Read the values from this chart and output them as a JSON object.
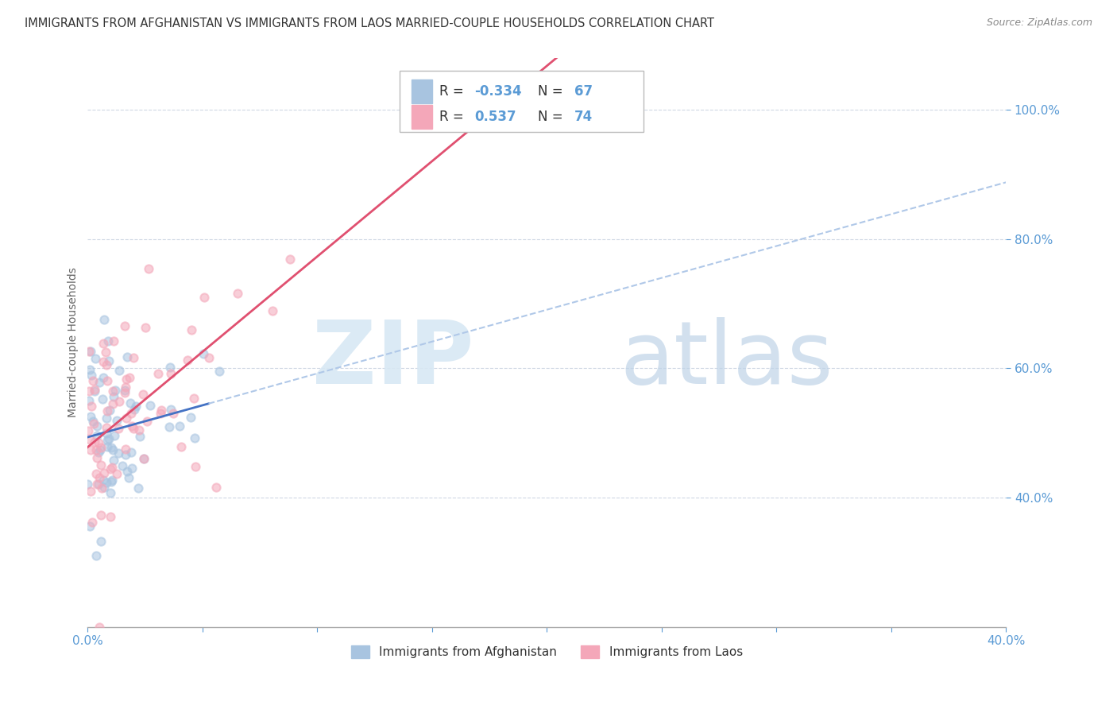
{
  "title": "IMMIGRANTS FROM AFGHANISTAN VS IMMIGRANTS FROM LAOS MARRIED-COUPLE HOUSEHOLDS CORRELATION CHART",
  "source": "Source: ZipAtlas.com",
  "ylabel_label": "Married-couple Households",
  "legend_entries": [
    {
      "label": "Immigrants from Afghanistan",
      "color": "#a8c4e0",
      "R": -0.334,
      "N": 67
    },
    {
      "label": "Immigrants from Laos",
      "color": "#f4a7b9",
      "R": 0.537,
      "N": 74
    }
  ],
  "bg_color": "#ffffff",
  "grid_color": "#d0d8e4",
  "title_color": "#333333",
  "axis_label_color": "#5b9bd5",
  "dot_alpha": 0.55,
  "dot_size": 55,
  "afg_line_color": "#4472c4",
  "laos_line_color": "#e05070",
  "dash_color": "#b0c8e8",
  "xlim": [
    0,
    40
  ],
  "ylim": [
    20,
    108
  ],
  "yticks": [
    40,
    60,
    80,
    100
  ],
  "xtick_labels": [
    "0.0%",
    "40.0%"
  ]
}
